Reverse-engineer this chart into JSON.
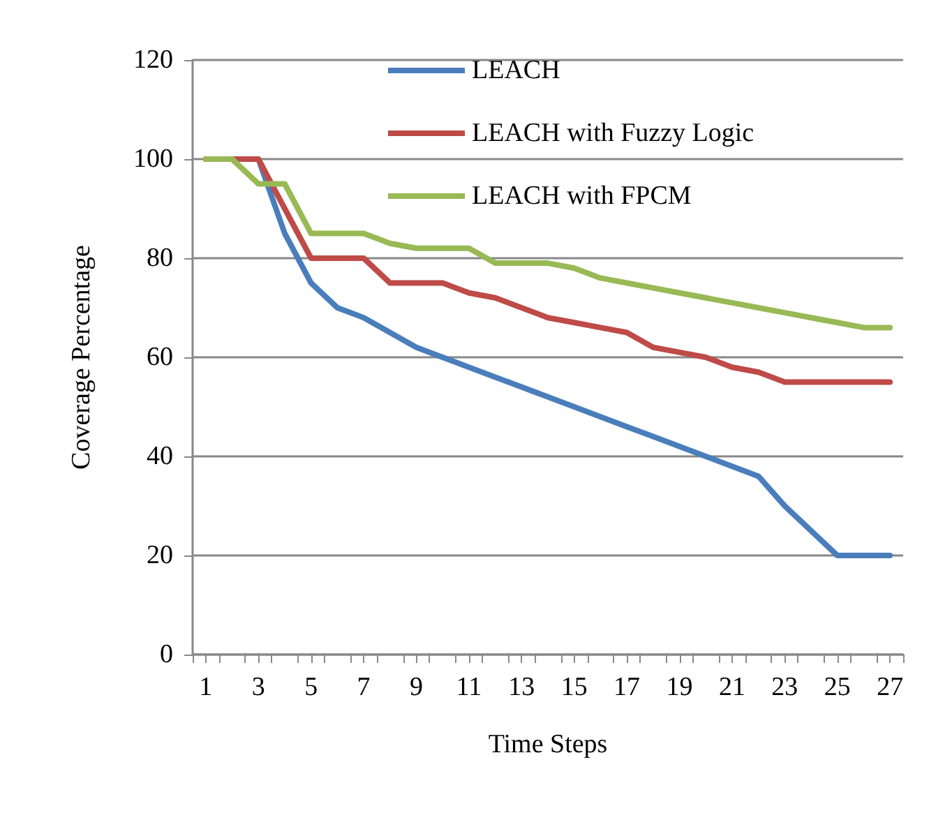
{
  "chart_data": {
    "type": "line",
    "xlabel": "Time Steps",
    "ylabel": "Coverage Percentage",
    "x": [
      1,
      2,
      3,
      4,
      5,
      6,
      7,
      8,
      9,
      10,
      11,
      12,
      13,
      14,
      15,
      16,
      17,
      18,
      19,
      20,
      21,
      22,
      23,
      24,
      25,
      26,
      27
    ],
    "series": [
      {
        "name": "LEACH",
        "color": "#4a7ebb",
        "values": [
          100,
          100,
          100,
          85,
          75,
          70,
          68,
          65,
          62,
          60,
          58,
          56,
          54,
          52,
          50,
          48,
          46,
          44,
          42,
          40,
          38,
          36,
          30,
          25,
          20,
          20,
          20
        ]
      },
      {
        "name": "LEACH with Fuzzy Logic",
        "color": "#be4b48",
        "values": [
          100,
          100,
          100,
          90,
          80,
          80,
          80,
          75,
          75,
          75,
          73,
          72,
          70,
          68,
          67,
          66,
          65,
          62,
          61,
          60,
          58,
          57,
          55,
          55,
          55,
          55,
          55
        ]
      },
      {
        "name": "LEACH with FPCM",
        "color": "#98b954",
        "values": [
          100,
          100,
          95,
          95,
          85,
          85,
          85,
          83,
          82,
          82,
          82,
          79,
          79,
          79,
          78,
          76,
          75,
          74,
          73,
          72,
          71,
          70,
          69,
          68,
          67,
          66,
          66
        ]
      }
    ],
    "xlim": [
      0.5,
      27.5
    ],
    "xticks": [
      {
        "value": 0.5,
        "label": null
      },
      1,
      {
        "value": 1.5,
        "label": null
      },
      {
        "value": 2.5,
        "label": null
      },
      3,
      {
        "value": 3.5,
        "label": null
      },
      {
        "value": 4.5,
        "label": null
      },
      5,
      {
        "value": 5.5,
        "label": null
      },
      {
        "value": 6.5,
        "label": null
      },
      7,
      {
        "value": 7.5,
        "label": null
      },
      {
        "value": 8.5,
        "label": null
      },
      9,
      {
        "value": 9.5,
        "label": null
      },
      {
        "value": 10.5,
        "label": null
      },
      11,
      {
        "value": 11.5,
        "label": null
      },
      {
        "value": 12.5,
        "label": null
      },
      13,
      {
        "value": 13.5,
        "label": null
      },
      {
        "value": 14.5,
        "label": null
      },
      15,
      {
        "value": 15.5,
        "label": null
      },
      {
        "value": 16.5,
        "label": null
      },
      17,
      {
        "value": 17.5,
        "label": null
      },
      {
        "value": 18.5,
        "label": null
      },
      19,
      {
        "value": 19.5,
        "label": null
      },
      {
        "value": 20.5,
        "label": null
      },
      21,
      {
        "value": 21.5,
        "label": null
      },
      {
        "value": 22.5,
        "label": null
      },
      23,
      {
        "value": 23.5,
        "label": null
      },
      {
        "value": 24.5,
        "label": null
      },
      25,
      {
        "value": 25.5,
        "label": null
      },
      {
        "value": 26.5,
        "label": null
      },
      27,
      {
        "value": 27.5,
        "label": null
      }
    ],
    "ylim": [
      0,
      120
    ],
    "yticks": [
      0,
      20,
      40,
      60,
      80,
      100,
      120
    ],
    "grid": "y",
    "legend": "top",
    "marker": "none",
    "line_style": "solid"
  }
}
